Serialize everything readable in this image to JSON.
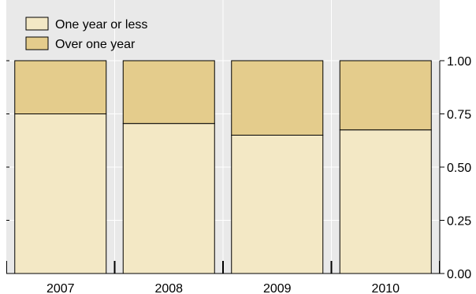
{
  "chart_data": {
    "type": "bar",
    "stacked": true,
    "title": "",
    "xlabel": "",
    "ylabel": "",
    "categories": [
      "2007",
      "2008",
      "2009",
      "2010"
    ],
    "series": [
      {
        "name": "One year or less",
        "values": [
          0.75,
          0.705,
          0.65,
          0.675
        ],
        "color": "#f3e8c5"
      },
      {
        "name": "Over one year",
        "values": [
          0.25,
          0.295,
          0.35,
          0.325
        ],
        "color": "#e4cc8c"
      }
    ],
    "ylim": [
      0,
      1.0
    ],
    "yticks": [
      "0.00",
      "0.25",
      "0.50",
      "0.75",
      "1.00"
    ],
    "ytick_values": [
      0,
      0.25,
      0.5,
      0.75,
      1.0
    ],
    "y_axis_side": "right",
    "grid": true,
    "legend_position": "top-left",
    "background": "#e9e9e9"
  }
}
